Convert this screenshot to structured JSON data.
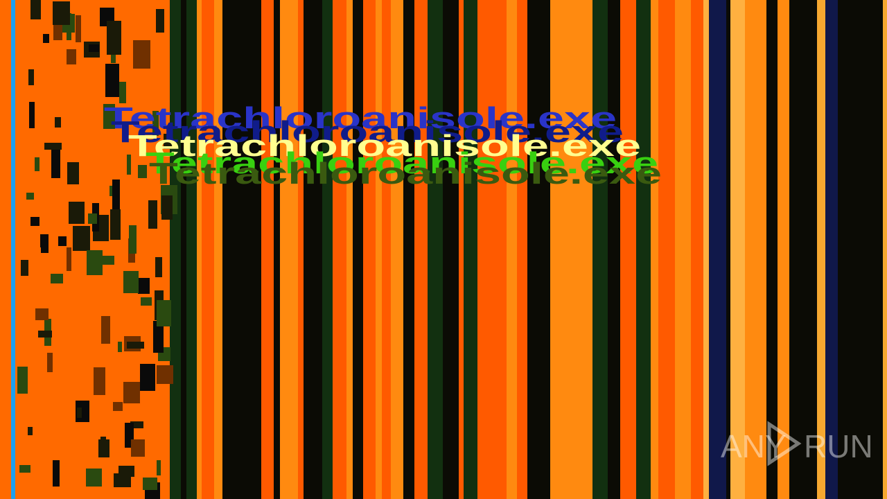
{
  "screen": {
    "glitch_text": [
      "Tetrachloroanisole.exe",
      "Tetrachloroanisole.exe",
      "Tetrachloroanisole.exe",
      "Tetrachloroanisole.exe",
      "Tetrachloroanisole.exe"
    ],
    "watermark": {
      "left": "ANY",
      "right": "RUN"
    }
  }
}
